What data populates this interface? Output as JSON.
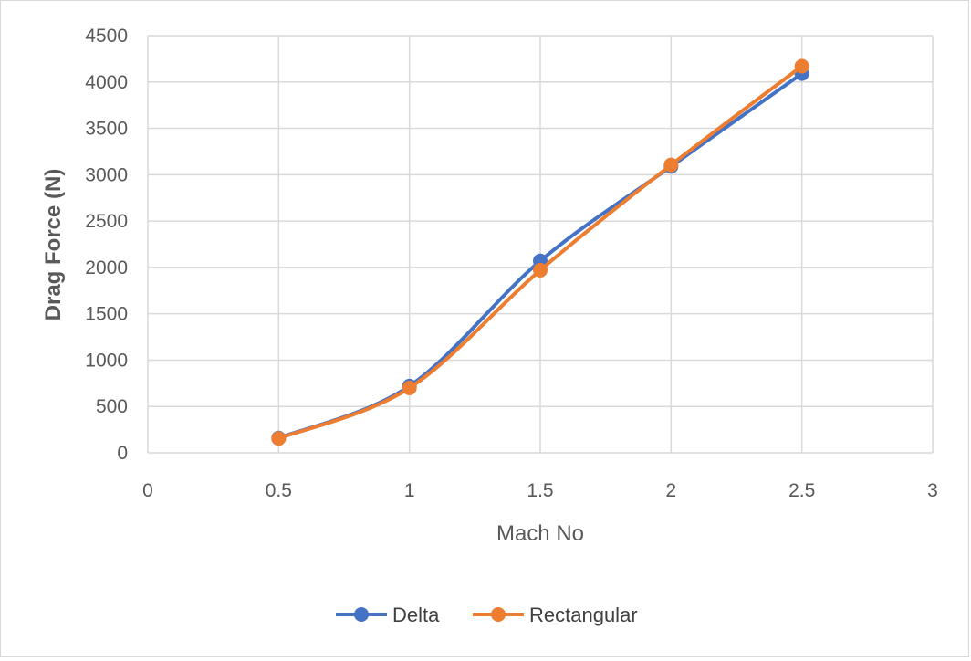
{
  "chart_data": {
    "type": "line",
    "title": "",
    "xlabel": "Mach No",
    "ylabel": "Drag Force (N)",
    "xlim": [
      0,
      3
    ],
    "ylim": [
      0,
      4500
    ],
    "x_ticks": [
      "0",
      "0.5",
      "1",
      "1.5",
      "2",
      "2.5",
      "3"
    ],
    "y_ticks": [
      "0",
      "500",
      "1000",
      "1500",
      "2000",
      "2500",
      "3000",
      "3500",
      "4000",
      "4500"
    ],
    "grid": true,
    "legend_position": "bottom",
    "series": [
      {
        "name": "Delta",
        "color": "#4472c4",
        "x": [
          0.5,
          1,
          1.5,
          2,
          2.5
        ],
        "y": [
          160,
          720,
          2070,
          3090,
          4090
        ]
      },
      {
        "name": "Rectangular",
        "color": "#ed7d31",
        "x": [
          0.5,
          1,
          1.5,
          2,
          2.5
        ],
        "y": [
          155,
          700,
          1970,
          3105,
          4170
        ]
      }
    ]
  }
}
